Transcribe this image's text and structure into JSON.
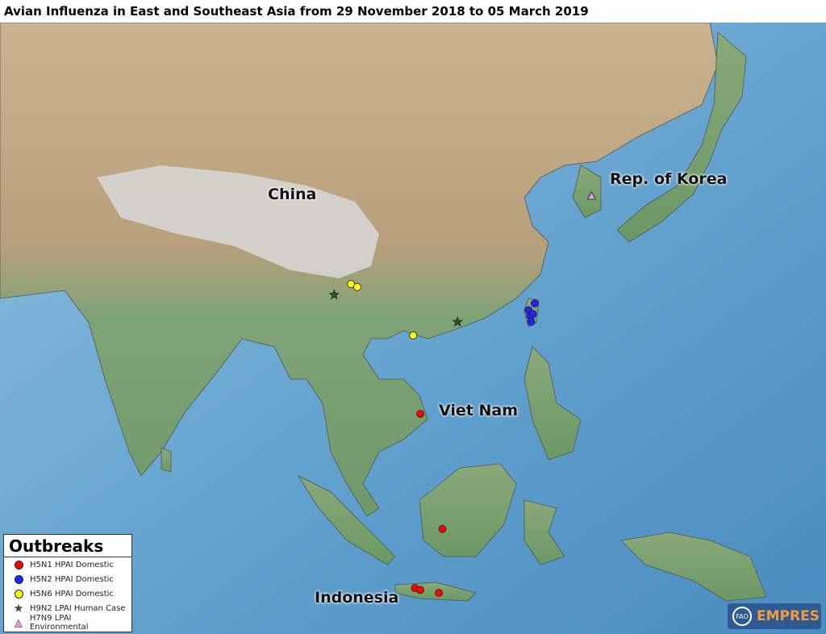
{
  "title": "Avian Influenza in East and Southeast Asia from 29 November 2018 to 05 March 2019",
  "map_labels": {
    "china": "China",
    "korea": "Rep. of Korea",
    "vietnam": "Viet Nam",
    "indonesia": "Indonesia"
  },
  "legend": {
    "title": "Outbreaks",
    "items": [
      {
        "label": "H5N1 HPAI Domestic",
        "symbol": "circle",
        "color": "#ff0000"
      },
      {
        "label": "H5N2 HPAI Domestic",
        "symbol": "circle",
        "color": "#2222ff"
      },
      {
        "label": "H5N6 HPAI Domestic",
        "symbol": "circle",
        "color": "#ffff00"
      },
      {
        "label": "H9N2 LPAI Human Case",
        "symbol": "star",
        "color": "#2d5a1b"
      },
      {
        "label": "H7N9 LPAI Environmental",
        "symbol": "triangle",
        "color": "#e39be6"
      }
    ]
  },
  "outbreaks": [
    {
      "type": 0,
      "lon": 108.5,
      "lat": 13.5
    },
    {
      "type": 0,
      "lon": 111.0,
      "lat": 1.6
    },
    {
      "type": 0,
      "lon": 107.9,
      "lat": -4.5
    },
    {
      "type": 0,
      "lon": 108.5,
      "lat": -4.7
    },
    {
      "type": 0,
      "lon": 110.6,
      "lat": -5.0
    },
    {
      "type": 1,
      "lon": 121.4,
      "lat": 24.9
    },
    {
      "type": 1,
      "lon": 120.7,
      "lat": 24.2
    },
    {
      "type": 1,
      "lon": 120.9,
      "lat": 23.6
    },
    {
      "type": 1,
      "lon": 121.0,
      "lat": 23.0
    },
    {
      "type": 1,
      "lon": 121.2,
      "lat": 23.8
    },
    {
      "type": 2,
      "lon": 100.7,
      "lat": 26.9
    },
    {
      "type": 2,
      "lon": 101.4,
      "lat": 26.6
    },
    {
      "type": 2,
      "lon": 107.7,
      "lat": 21.6
    },
    {
      "type": 3,
      "lon": 98.8,
      "lat": 25.8
    },
    {
      "type": 3,
      "lon": 112.7,
      "lat": 23.0
    },
    {
      "type": 4,
      "lon": 127.8,
      "lat": 36.0
    }
  ],
  "logo": {
    "fao": "FAO",
    "text": "EMPRES"
  }
}
